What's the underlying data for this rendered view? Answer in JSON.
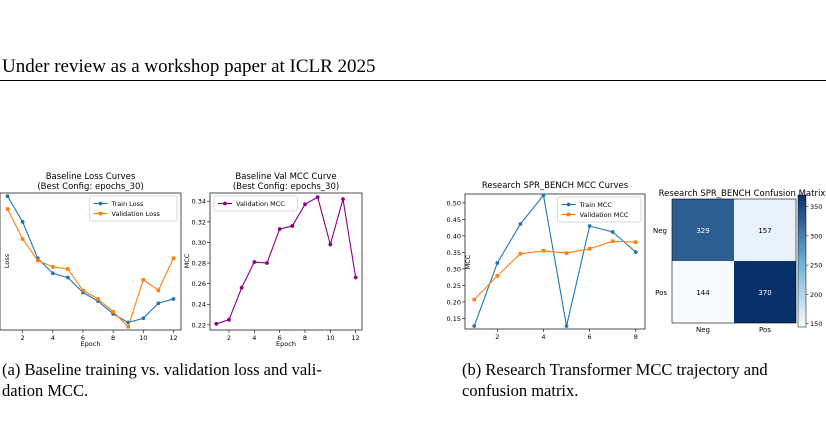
{
  "header": {
    "text": "Under review as a workshop paper at ICLR 2025"
  },
  "captions": {
    "a_line1": "(a) Baseline training vs. validation loss and vali-",
    "a_line2": "dation MCC.",
    "b_line1": "(b) Research Transformer MCC trajectory and",
    "b_line2": "confusion matrix."
  },
  "colors": {
    "blue": "#1f77b4",
    "orange": "#ff7f0e",
    "purple": "#8b008b"
  },
  "chart_data": [
    {
      "type": "line",
      "title": "Baseline Loss Curves",
      "subtitle": "(Best Config: epochs_30)",
      "xlabel": "Epoch",
      "ylabel": "Loss",
      "xlim": [
        0.5,
        12.5
      ],
      "ylim": [
        0.6275,
        0.6915
      ],
      "xticks": [
        2,
        4,
        6,
        8,
        10,
        12
      ],
      "yticks": [
        0.63,
        0.64,
        0.65,
        0.66,
        0.67,
        0.68,
        0.69
      ],
      "legend": "top-right",
      "x": [
        1,
        2,
        3,
        4,
        5,
        6,
        7,
        8,
        9,
        10,
        11,
        12
      ],
      "series": [
        {
          "name": "Train Loss",
          "color": "#1f77b4",
          "marker": "circle",
          "values": [
            0.69,
            0.678,
            0.661,
            0.654,
            0.652,
            0.645,
            0.641,
            0.635,
            0.631,
            0.633,
            0.64,
            0.642
          ]
        },
        {
          "name": "Validation Loss",
          "color": "#ff7f0e",
          "marker": "square",
          "values": [
            0.684,
            0.67,
            0.66,
            0.657,
            0.656,
            0.646,
            0.642,
            0.636,
            0.629,
            0.651,
            0.646,
            0.661
          ]
        }
      ]
    },
    {
      "type": "line",
      "title": "Baseline Val MCC Curve",
      "subtitle": "(Best Config: epochs_30)",
      "xlabel": "Epoch",
      "ylabel": "MCC",
      "xlim": [
        0.5,
        12.5
      ],
      "ylim": [
        0.215,
        0.348
      ],
      "xticks": [
        2,
        4,
        6,
        8,
        10,
        12
      ],
      "yticks": [
        0.22,
        0.24,
        0.26,
        0.28,
        0.3,
        0.32,
        0.34
      ],
      "legend": "top-left",
      "x": [
        1,
        2,
        3,
        4,
        5,
        6,
        7,
        8,
        9,
        10,
        11,
        12
      ],
      "series": [
        {
          "name": "Validation MCC",
          "color": "#8b008b",
          "marker": "circle",
          "values": [
            0.221,
            0.225,
            0.256,
            0.281,
            0.28,
            0.313,
            0.316,
            0.337,
            0.344,
            0.298,
            0.342,
            0.266
          ]
        }
      ]
    },
    {
      "type": "line",
      "title": "Research SPR_BENCH MCC Curves",
      "xlabel": "",
      "ylabel": "MCC",
      "xlim": [
        0.6,
        8.4
      ],
      "ylim": [
        0.118,
        0.527
      ],
      "xticks": [
        2,
        4,
        6,
        8
      ],
      "yticks": [
        0.15,
        0.2,
        0.25,
        0.3,
        0.35,
        0.4,
        0.45,
        0.5
      ],
      "legend": "top-right",
      "x": [
        1,
        2,
        3,
        4,
        5,
        6,
        7,
        8
      ],
      "series": [
        {
          "name": "Train MCC",
          "color": "#1f77b4",
          "marker": "circle",
          "values": [
            0.127,
            0.318,
            0.436,
            0.523,
            0.127,
            0.43,
            0.412,
            0.351
          ]
        },
        {
          "name": "Validation MCC",
          "color": "#ff7f0e",
          "marker": "square",
          "values": [
            0.207,
            0.279,
            0.346,
            0.355,
            0.348,
            0.361,
            0.384,
            0.381
          ]
        }
      ]
    },
    {
      "type": "heatmap",
      "title": "Research SPR_BENCH Confusion Matrix",
      "rows": [
        "Neg",
        "Pos"
      ],
      "cols": [
        "Neg",
        "Pos"
      ],
      "values": [
        [
          329,
          157
        ],
        [
          144,
          370
        ]
      ],
      "colorbar_ticks": [
        150,
        200,
        250,
        300,
        350
      ],
      "vmin": 144,
      "vmax": 370
    }
  ]
}
